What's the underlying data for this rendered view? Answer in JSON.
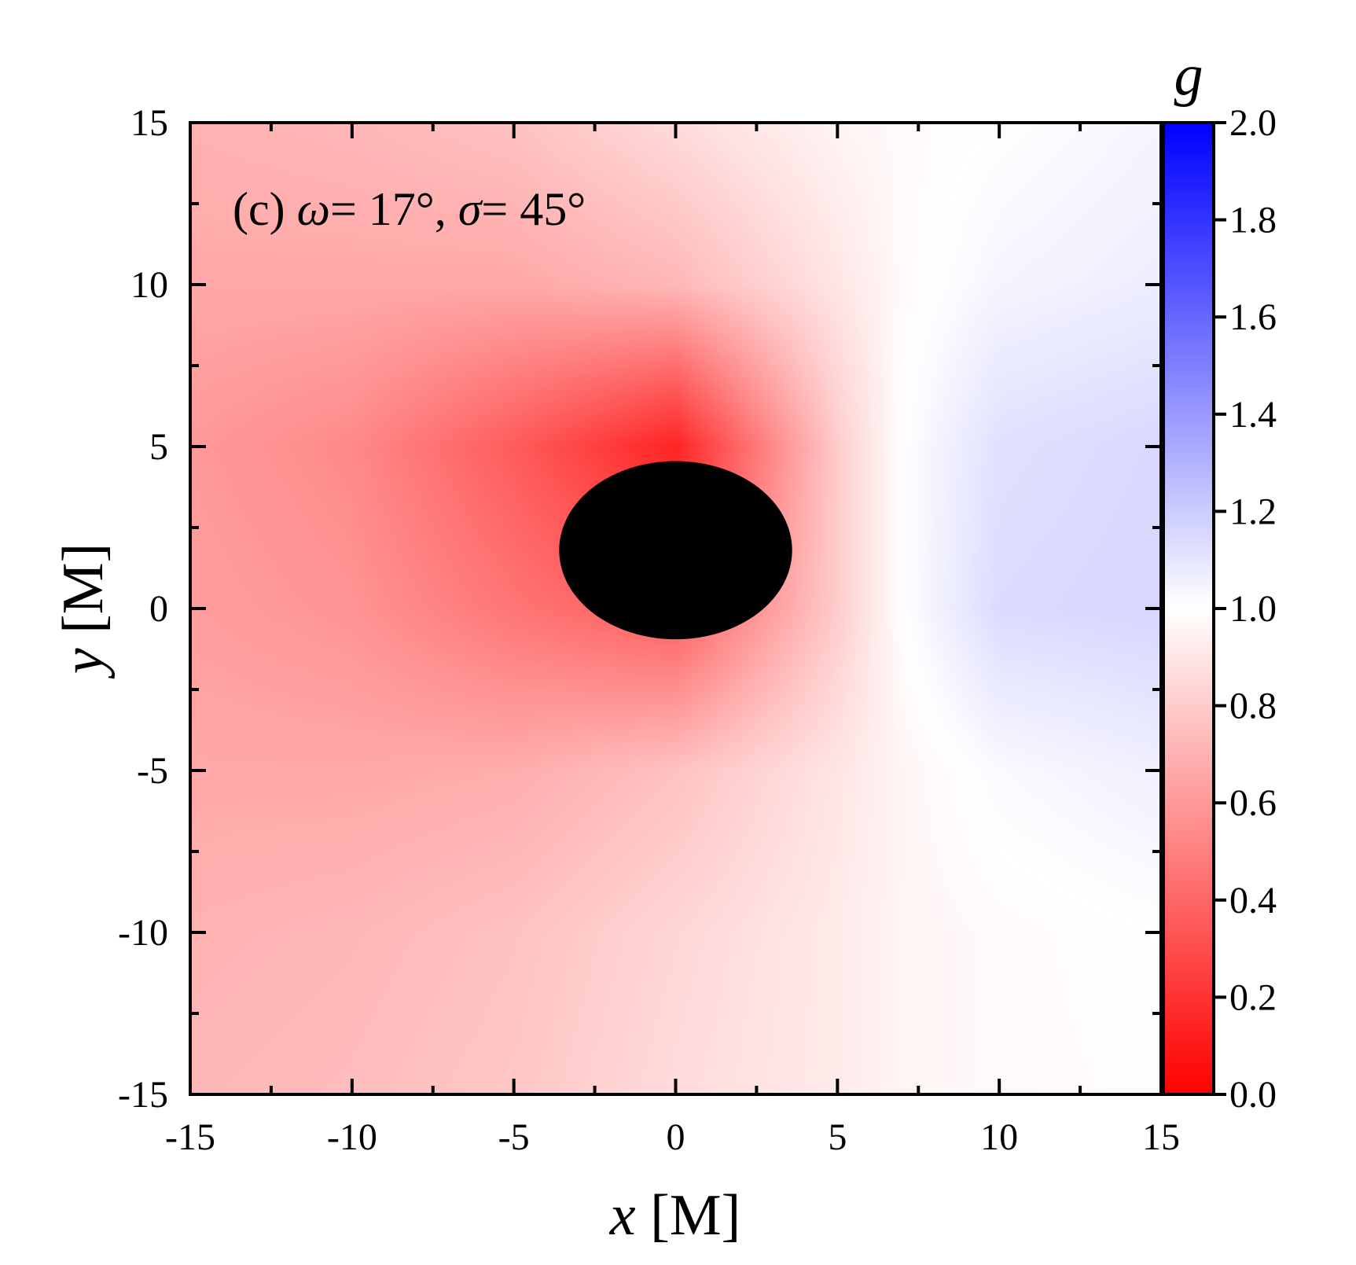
{
  "chart_data": {
    "type": "heatmap",
    "annotation": {
      "prefix": "(c) ",
      "omega_symbol": "ω",
      "omega_value": "= 17°, ",
      "sigma_symbol": "σ",
      "sigma_value": "= 45°"
    },
    "xlabel": {
      "var": "x",
      "unit": " [M]"
    },
    "ylabel": {
      "var": "y",
      "unit": " [M]"
    },
    "xlim": [
      -15,
      15
    ],
    "ylim": [
      -15,
      15
    ],
    "x_ticks": [
      -15,
      -10,
      -5,
      0,
      5,
      10,
      15
    ],
    "x_tick_labels": [
      "-15",
      "-10",
      "-5",
      "0",
      "5",
      "10",
      "15"
    ],
    "y_ticks": [
      -15,
      -10,
      -5,
      0,
      5,
      10,
      15
    ],
    "y_tick_labels": [
      "-15",
      "-10",
      "-5",
      "0",
      "5",
      "10",
      "15"
    ],
    "colorbar": {
      "label": "g",
      "range": [
        0,
        2
      ],
      "ticks": [
        0,
        0.2,
        0.4,
        0.6,
        0.8,
        1.0,
        1.2,
        1.4,
        1.6,
        1.8,
        2.0
      ],
      "tick_labels": [
        "0.0",
        "0.2",
        "0.4",
        "0.6",
        "0.8",
        "1.0",
        "1.2",
        "1.4",
        "1.6",
        "1.8",
        "2.0"
      ],
      "colors": {
        "low": "#ff0000",
        "mid": "#ffffff",
        "high": "#0000ff"
      }
    },
    "shadow": {
      "center": [
        0,
        1.8
      ],
      "semi_axis_x": 3.6,
      "semi_axis_y": 2.75,
      "color": "#000000"
    },
    "grid": false,
    "values_sample": {
      "x": [
        -15,
        -10,
        -5,
        0,
        5,
        7,
        10,
        15
      ],
      "y": [
        15,
        10,
        5,
        0,
        -5,
        -10,
        -15
      ],
      "g": [
        [
          0.7,
          0.72,
          0.76,
          0.86,
          0.96,
          0.98,
          1.0,
          1.04
        ],
        [
          0.66,
          0.66,
          0.66,
          0.72,
          0.9,
          0.98,
          1.04,
          1.07
        ],
        [
          0.6,
          0.54,
          0.36,
          0.14,
          0.8,
          1.0,
          1.12,
          1.15
        ],
        [
          0.62,
          0.58,
          0.46,
          0.36,
          0.8,
          1.0,
          1.14,
          1.16
        ],
        [
          0.66,
          0.66,
          0.68,
          0.76,
          0.9,
          0.96,
          1.02,
          1.06
        ],
        [
          0.7,
          0.72,
          0.76,
          0.84,
          0.92,
          0.96,
          0.98,
          1.0
        ],
        [
          0.72,
          0.74,
          0.78,
          0.86,
          0.92,
          0.96,
          0.98,
          0.99
        ]
      ]
    }
  }
}
